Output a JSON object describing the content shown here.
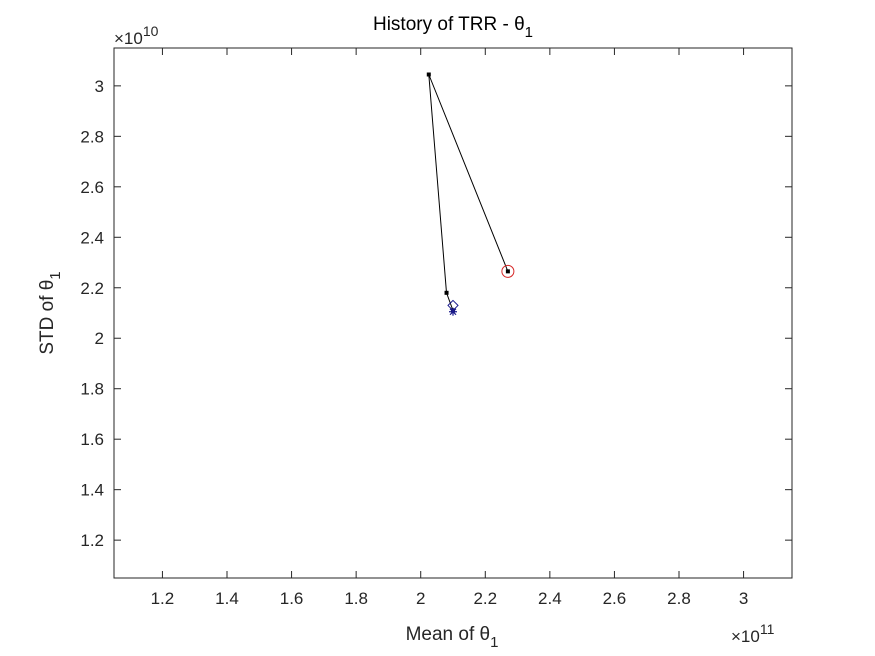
{
  "chart_data": {
    "type": "line",
    "title": "History of TRR - θ",
    "title_subscript": "1",
    "xlabel": "Mean of θ",
    "xlabel_subscript": "1",
    "ylabel": "STD of θ",
    "ylabel_subscript": "1",
    "x_multiplier": {
      "base": "×10",
      "exponent": "11"
    },
    "y_multiplier": {
      "base": "×10",
      "exponent": "10"
    },
    "xlim": [
      1.05,
      3.15
    ],
    "ylim": [
      1.05,
      3.15
    ],
    "xticks": [
      1.2,
      1.4,
      1.6,
      1.8,
      2,
      2.2,
      2.4,
      2.6,
      2.8,
      3
    ],
    "xtick_labels": [
      "1.2",
      "1.4",
      "1.6",
      "1.8",
      "2",
      "2.2",
      "2.4",
      "2.6",
      "2.8",
      "3"
    ],
    "yticks": [
      1.2,
      1.4,
      1.6,
      1.8,
      2,
      2.2,
      2.4,
      2.6,
      2.8,
      3
    ],
    "ytick_labels": [
      "1.2",
      "1.4",
      "1.6",
      "1.8",
      "2",
      "2.2",
      "2.4",
      "2.6",
      "2.8",
      "3"
    ],
    "grid": false,
    "series": [
      {
        "color": "#000000",
        "points": [
          {
            "x": 2.27,
            "y": 2.265
          },
          {
            "x": 2.025,
            "y": 3.045
          },
          {
            "x": 2.08,
            "y": 2.18
          },
          {
            "x": 2.1,
            "y": 2.11
          }
        ]
      }
    ],
    "markers": [
      {
        "kind": "circle",
        "x": 2.27,
        "y": 2.265,
        "color": "#d62828"
      },
      {
        "kind": "diamond",
        "x": 2.1,
        "y": 2.13,
        "color": "#1a1a8c"
      },
      {
        "kind": "asterisk",
        "x": 2.1,
        "y": 2.105,
        "color": "#1a1a8c"
      }
    ]
  }
}
